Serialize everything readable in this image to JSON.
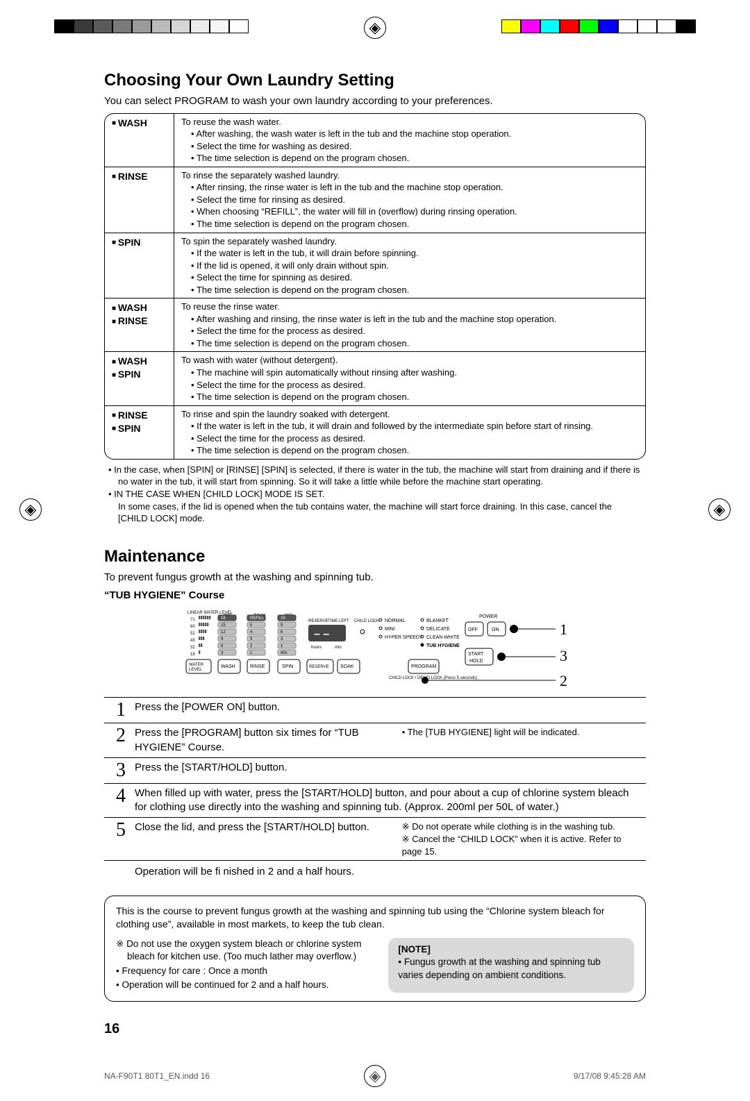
{
  "colors": {
    "text": "#000000",
    "bg": "#ffffff",
    "note_bg": "#d9d9d9",
    "print_swatches_left": [
      "#000000",
      "#3a3a3a",
      "#5a5a5a",
      "#7a7a7a",
      "#9a9a9a",
      "#bababa",
      "#d5d5d5",
      "#eaeaea",
      "#f5f5f5",
      "#ffffff"
    ],
    "print_swatches_right": [
      "#ffff00",
      "#ff00ff",
      "#00ffff",
      "#ff0000",
      "#00ff00",
      "#0000ff",
      "#ffffff",
      "#ffffff",
      "#ffffff",
      "#000000"
    ]
  },
  "section1": {
    "title": "Choosing Your Own Laundry Setting",
    "intro": "You can select PROGRAM to wash your own laundry according to your preferences.",
    "rows": [
      {
        "labels": [
          "WASH"
        ],
        "lead": "To reuse the wash water.",
        "items": [
          "After washing, the wash water is left in the tub and the machine stop operation.",
          "Select the time for washing as desired.",
          "The time selection is depend on the program chosen."
        ]
      },
      {
        "labels": [
          "RINSE"
        ],
        "lead": "To rinse the separately washed laundry.",
        "items": [
          "After rinsing, the rinse water is left in the tub and the machine stop operation.",
          "Select the time for rinsing as desired.",
          "When choosing “REFILL”, the water will fill in (overflow) during rinsing operation.",
          "The time selection is depend on the program chosen."
        ]
      },
      {
        "labels": [
          "SPIN"
        ],
        "lead": "To spin the separately washed laundry.",
        "items": [
          "If the water is left in the tub, it will drain before spinning.",
          "If the lid is opened, it will only drain without spin.",
          "Select the time for spinning as desired.",
          "The time selection is depend on the program chosen."
        ]
      },
      {
        "labels": [
          "WASH",
          "RINSE"
        ],
        "lead": "To reuse the rinse water.",
        "items": [
          "After washing and rinsing, the rinse water is left in the tub and the machine stop operation.",
          "Select the time for the process as desired.",
          "The time selection is depend on the program chosen."
        ]
      },
      {
        "labels": [
          "WASH",
          "SPIN"
        ],
        "lead": "To wash with water (without detergent).",
        "items": [
          "The machine will spin automatically without rinsing after washing.",
          "Select the time for the process as desired.",
          "The time selection is depend on the program chosen."
        ]
      },
      {
        "labels": [
          "RINSE",
          "SPIN"
        ],
        "lead": "To rinse and spin the laundry soaked with detergent.",
        "items": [
          "If the water is left in the tub, it will drain and followed by the intermediate spin before start of rinsing.",
          "Select the time for the process as desired.",
          "The time selection is depend on the program chosen."
        ]
      }
    ],
    "below_notes": [
      "In the case, when [SPIN] or [RINSE] [SPIN] is selected, if there is water in the tub, the machine will start from draining and if there is no water in the tub, it will start from spinning. So it will take a little while before the machine start operating.",
      "IN THE CASE WHEN [CHILD LOCK] MODE IS SET."
    ],
    "below_trail": "In some cases, if the lid is opened when the tub contains water, the machine will start force draining. In this case, cancel the [CHILD LOCK] mode."
  },
  "section2": {
    "title": "Maintenance",
    "intro": "To prevent fungus growth at the washing and spinning tub.",
    "subhead": "“TUB HYGIENE” Course",
    "panel": {
      "labels": {
        "linear": "LINEAR WATER LEVEL",
        "levels": [
          "71",
          "60",
          "52",
          "43",
          "32",
          "18"
        ],
        "min": "min",
        "times": "times",
        "reserve": "RESERVE",
        "timeleft": "TIME LEFT",
        "childlock": "CHILD LOCK",
        "hours": "hours",
        "min2": "min",
        "programs": [
          "NORMAL",
          "MINI",
          "HYPER SPEEDY",
          "BLANKET",
          "DELICATE",
          "CLEAN WHITE",
          "TUB HYGIENE"
        ],
        "power": "POWER",
        "off": "OFF",
        "on": "ON",
        "start": "START",
        "hold": "HOLD",
        "childlock_hint": "CHILD LOCK / DEMO LOCK (Press 5 seconds)",
        "buttons": [
          "WATER LEVEL",
          "WASH",
          "RINSE",
          "SPIN",
          "RESERVE",
          "SOAK",
          "PROGRAM"
        ]
      },
      "wash_opts": [
        "18",
        "15",
        "12",
        "9",
        "6",
        "3"
      ],
      "rinse_opts": [
        "REFILL",
        "5",
        "4",
        "3",
        "2",
        "1"
      ],
      "spin_opts": [
        "15",
        "9",
        "6",
        "3",
        "1",
        "40s"
      ],
      "callouts": [
        "1",
        "3",
        "2"
      ]
    },
    "steps": [
      {
        "num": "1",
        "main": "Press the [POWER ON] button.",
        "side": ""
      },
      {
        "num": "2",
        "main": "Press the [PROGRAM] button six times for “TUB HYGIENE” Course.",
        "side": "• The [TUB HYGIENE] light will be indicated."
      },
      {
        "num": "3",
        "main": "Press the [START/HOLD] button.",
        "side": ""
      },
      {
        "num": "4",
        "main": "When filled up with water, press the [START/HOLD] button, and pour about a cup of chlorine system bleach for clothing use directly into the washing and spinning tub. (Approx. 200ml per 50L of water.)",
        "side": ""
      },
      {
        "num": "5",
        "main": "Close the lid, and press the [START/HOLD] button.",
        "side_items": [
          "Do not operate while clothing is in the washing tub.",
          "Cancel the “CHILD LOCK” when it is active. Refer to page 15."
        ]
      }
    ],
    "after_steps": "Operation will be fi nished in 2 and a half hours.",
    "callout": {
      "lead": "This is the course to prevent fungus growth at the washing and spinning tub using the “Chlorine system bleach for clothing use”, available in most markets, to keep the tub clean.",
      "left": [
        {
          "type": "star",
          "text": "Do not use the oxygen system bleach or chlorine system bleach for kitchen use. (Too much lather may overflow.)"
        },
        {
          "type": "dot",
          "text": "Frequency for care : Once a month"
        },
        {
          "type": "dot",
          "text": "Operation will be continued for 2 and a half hours."
        }
      ],
      "note_title": "[NOTE]",
      "note_items": [
        "Fungus growth at the washing and spinning tub varies depending on ambient conditions."
      ]
    }
  },
  "page_number": "16",
  "footer": {
    "left": "NA-F90T1 80T1_EN.indd   16",
    "right": "9/17/08   9:45:28 AM"
  }
}
